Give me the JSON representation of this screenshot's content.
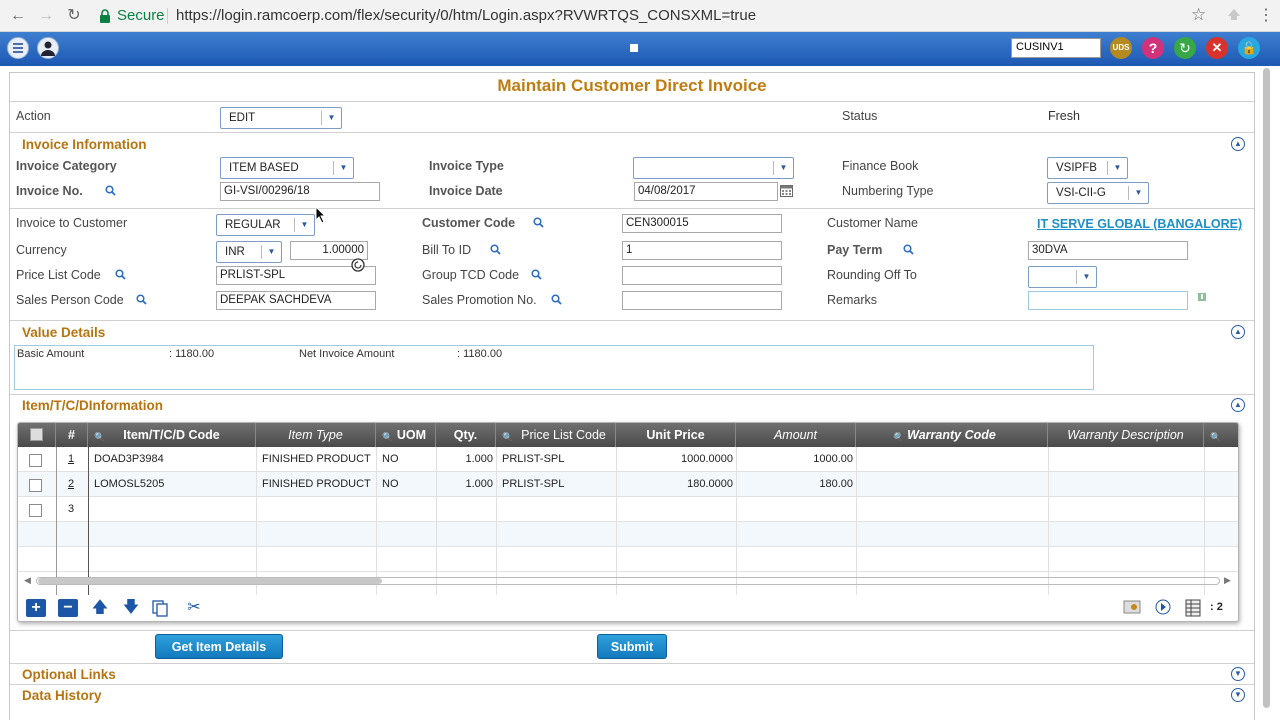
{
  "browser": {
    "secure_label": "Secure",
    "url": "https://login.ramcoerp.com/flex/security/0/htm/Login.aspx?RVWRTQS_CONSXML=true"
  },
  "appbar": {
    "org_value": "CUSINV1",
    "uds_label": "UDS",
    "help_label": "?"
  },
  "page": {
    "title": "Maintain Customer Direct Invoice"
  },
  "action": {
    "label": "Action",
    "value": "EDIT",
    "status_label": "Status",
    "status_value": "Fresh"
  },
  "invoice_info": {
    "title": "Invoice Information",
    "category_label": "Invoice Category",
    "category_value": "ITEM BASED",
    "type_label": "Invoice Type",
    "type_value": "",
    "finance_book_label": "Finance Book",
    "finance_book_value": "VSIPFB",
    "invoice_no_label": "Invoice No.",
    "invoice_no_value": "GI-VSI/00296/18",
    "invoice_date_label": "Invoice Date",
    "invoice_date_value": "04/08/2017",
    "numbering_type_label": "Numbering Type",
    "numbering_type_value": "VSI-CII-G"
  },
  "customer": {
    "invoice_to_label": "Invoice to Customer",
    "invoice_to_value": "REGULAR",
    "customer_code_label": "Customer Code",
    "customer_code_value": "CEN300015",
    "customer_name_label": "Customer Name",
    "customer_name_value": "IT SERVE GLOBAL (BANGALORE)",
    "currency_label": "Currency",
    "currency_value": "INR",
    "exchange_rate_value": "1.00000",
    "bill_to_label": "Bill To ID",
    "bill_to_value": "1",
    "pay_term_label": "Pay Term",
    "pay_term_value": "30DVA",
    "price_list_label": "Price List Code",
    "price_list_value": "PRLIST-SPL",
    "group_tcd_label": "Group TCD Code",
    "group_tcd_value": "",
    "rounding_label": "Rounding Off To",
    "rounding_value": "",
    "sales_person_label": "Sales Person Code",
    "sales_person_value": "DEEPAK SACHDEVA",
    "sales_promo_label": "Sales Promotion No.",
    "sales_promo_value": "",
    "remarks_label": "Remarks",
    "remarks_value": ""
  },
  "value_details": {
    "title": "Value Details",
    "basic_label": "Basic Amount",
    "basic_value": ": 1180.00",
    "net_label": "Net Invoice Amount",
    "net_value": ": 1180.00"
  },
  "items": {
    "title": "Item/T/C/DInformation",
    "columns": [
      "#",
      "Item/T/C/D Code",
      "Item Type",
      "UOM",
      "Qty.",
      "Price List Code",
      "Unit Price",
      "Amount",
      "Warranty Code",
      "Warranty Description"
    ],
    "rows": [
      {
        "num": "1",
        "code": "DOAD3P3984",
        "type": "FINISHED PRODUCT",
        "uom": "NO",
        "qty": "1.000",
        "price_list": "PRLIST-SPL",
        "unit_price": "1000.0000",
        "amount": "1000.00"
      },
      {
        "num": "2",
        "code": "LOMOSL5205",
        "type": "FINISHED PRODUCT",
        "uom": "NO",
        "qty": "1.000",
        "price_list": "PRLIST-SPL",
        "unit_price": "180.0000",
        "amount": "180.00"
      },
      {
        "num": "3",
        "code": "",
        "type": "",
        "uom": "",
        "qty": "",
        "price_list": "",
        "unit_price": "",
        "amount": ""
      }
    ],
    "record_count": ": 2"
  },
  "buttons": {
    "get_items": "Get Item Details",
    "submit": "Submit"
  },
  "links": {
    "optional": "Optional Links",
    "history": "Data History"
  }
}
